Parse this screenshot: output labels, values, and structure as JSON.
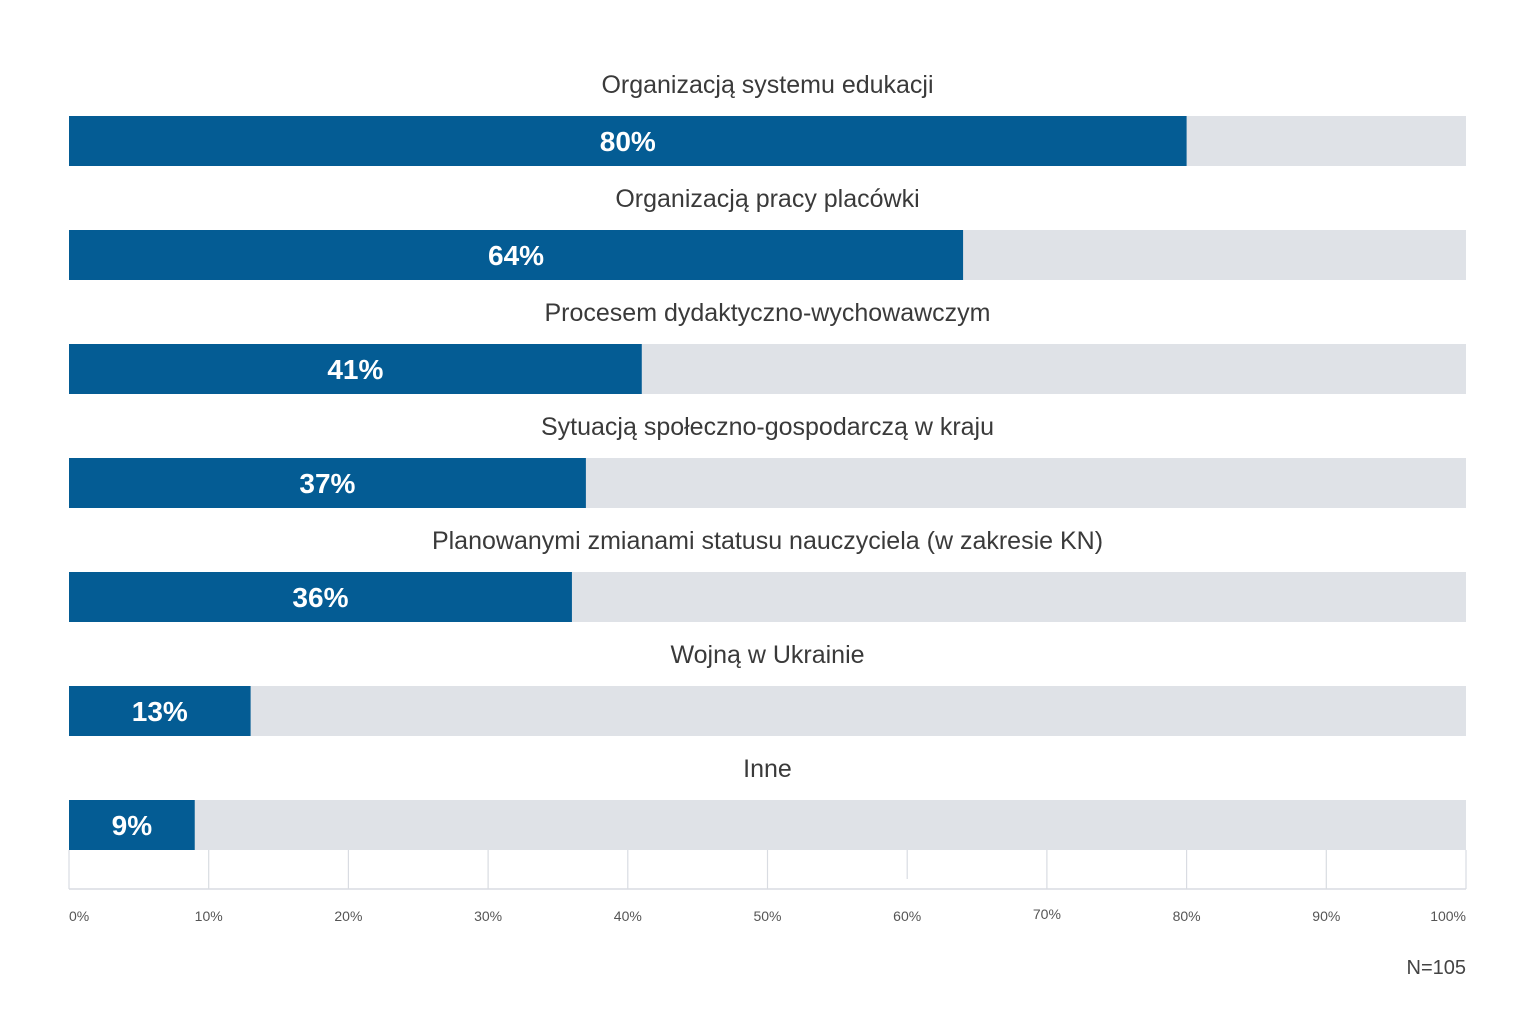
{
  "chart_data": {
    "type": "bar",
    "orientation": "horizontal",
    "title": "",
    "xlabel": "",
    "ylabel": "",
    "categories": [
      "Organizacją systemu edukacji",
      "Organizacją pracy placówki",
      "Procesem dydaktyczno-wychowawczym",
      "Sytuacją społeczno-gospodarczą w kraju",
      "Planowanymi zmianami statusu nauczyciela (w zakresie KN)",
      "Wojną w Ukrainie",
      "Inne"
    ],
    "values": [
      80,
      64,
      41,
      37,
      36,
      13,
      9
    ],
    "value_labels": [
      "80%",
      "64%",
      "41%",
      "37%",
      "36%",
      "13%",
      "9%"
    ],
    "xlim": [
      0,
      100
    ],
    "x_ticks": [
      0,
      10,
      20,
      30,
      40,
      50,
      60,
      70,
      80,
      90,
      100
    ],
    "x_tick_labels": [
      "0%",
      "10%",
      "20%",
      "30%",
      "40%",
      "50%",
      "60%",
      "70%",
      "80%",
      "90%",
      "100%"
    ],
    "grid": true,
    "legend": "none",
    "note": "N=105",
    "colors": {
      "bar": "#045c94",
      "track": "#dfe2e7",
      "grid": "#d9dce2",
      "label": "#3a3a3a"
    }
  }
}
